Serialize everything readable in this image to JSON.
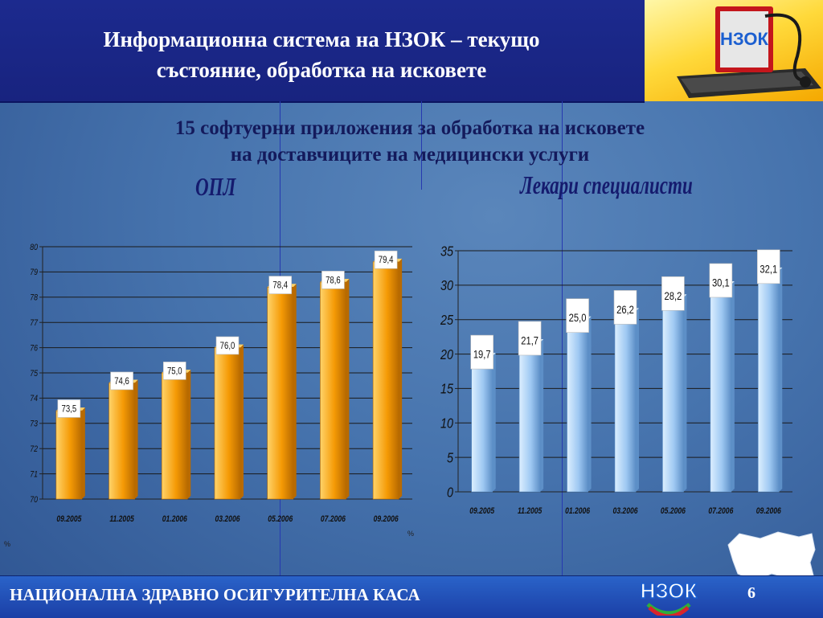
{
  "header": {
    "title_line1": "Информационна система на НЗОК – текущо",
    "title_line2": "състояние, обработка на исковете"
  },
  "subtitle_line1": "15 софтуерни приложения за обработка на исковете",
  "subtitle_line2": "на доставчиците на медицински услуги",
  "footer": {
    "text": "НАЦИОНАЛНА ЗДРАВНО ОСИГУРИТЕЛНА КАСА",
    "page_number": "6"
  },
  "logo": {
    "text": "НЗОК"
  },
  "chart_data": [
    {
      "type": "bar",
      "title": "ОПЛ",
      "categories": [
        "09.2005",
        "11.2005",
        "01.2006",
        "03.2006",
        "05.2006",
        "07.2006",
        "09.2006"
      ],
      "values": [
        73.5,
        74.6,
        75.0,
        76.0,
        78.4,
        78.6,
        79.4
      ],
      "labels": [
        "73,5",
        "74,6",
        "75,0",
        "76,0",
        "78,4",
        "78,6",
        "79,4"
      ],
      "ylim": [
        70,
        80
      ],
      "yticks": [
        70,
        71,
        72,
        73,
        74,
        75,
        76,
        77,
        78,
        79,
        80
      ],
      "unit": "%",
      "grid": true,
      "color": "#f59a05"
    },
    {
      "type": "bar",
      "title": "Лекари специалисти",
      "categories": [
        "09.2005",
        "11.2005",
        "01.2006",
        "03.2006",
        "05.2006",
        "07.2006",
        "09.2006"
      ],
      "values": [
        19.7,
        21.7,
        25.0,
        26.2,
        28.2,
        30.1,
        32.1
      ],
      "labels": [
        "19,7",
        "21,7",
        "25,0",
        "26,2",
        "28,2",
        "30,1",
        "32,1"
      ],
      "ylim": [
        0,
        35
      ],
      "yticks": [
        0,
        5,
        10,
        15,
        20,
        25,
        30,
        35
      ],
      "grid": true,
      "color": "#9ec8f2"
    }
  ]
}
